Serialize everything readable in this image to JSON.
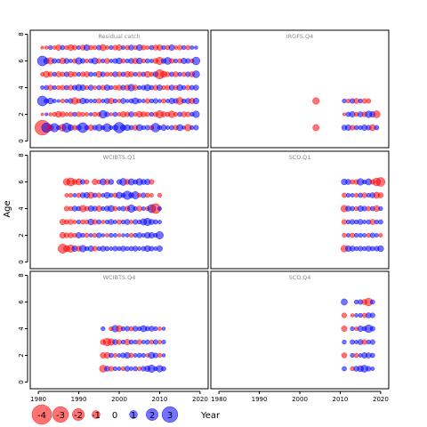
{
  "chart_data": {
    "type": "scatter",
    "kind": "bubble-residual-grid",
    "xlabel": "Year",
    "ylabel": "Age",
    "xlim": [
      1978,
      2022
    ],
    "ylim": [
      -0.5,
      8.3
    ],
    "x_ticks": [
      "1980",
      "1990",
      "2000",
      "2010",
      "2020"
    ],
    "y_ticks": [
      "0",
      "2",
      "4",
      "6",
      "8"
    ],
    "colors": {
      "negative": "#ff0000",
      "positive": "#0000ff",
      "fill_opacity": 0.55
    },
    "legend": {
      "values": [
        -4,
        -3,
        -2,
        -1,
        0,
        1,
        2,
        3
      ],
      "labels": [
        "-4",
        "-3",
        "-2",
        "-1",
        "0",
        "1",
        "2",
        "3"
      ],
      "title": "Year",
      "placement": "bottom"
    },
    "panels": [
      {
        "title": "Residual catch",
        "ages": [
          1,
          2,
          3,
          4,
          5,
          6,
          7
        ],
        "years": [
          1981,
          2019
        ],
        "rows": [
          [
            -3.6,
            2.1,
            -1.2,
            1.8,
            0.6,
            -1.4,
            2.0,
            1.1,
            -0.8,
            0.9,
            2.2,
            0.7,
            -1.0,
            0.8,
            1.3,
            0.6,
            1.7,
            0.5,
            0.9,
            2.4,
            1.0,
            1.1,
            0.7,
            -0.9,
            1.2,
            0.6,
            0.8,
            -0.7,
            1.9,
            0.6,
            1.0,
            0.5,
            0.7,
            -0.8,
            1.2,
            0.4,
            -1.3,
            0.6,
            0.8
          ],
          [
            -0.2,
            0.3,
            -0.4,
            -0.6,
            -1.1,
            -0.9,
            -0.5,
            -0.7,
            0.6,
            -0.8,
            -0.6,
            -0.5,
            0.4,
            -0.7,
            -0.6,
            1.6,
            0.8,
            -0.4,
            0.7,
            -0.5,
            -1.0,
            -0.8,
            0.9,
            -0.5,
            -1.1,
            -0.9,
            -0.7,
            0.6,
            -0.8,
            -1.5,
            -0.9,
            -0.7,
            -1.3,
            -0.6,
            0.7,
            -0.9,
            -0.8,
            0.6,
            1.3
          ],
          [
            2.2,
            0.8,
            1.1,
            0.5,
            0.3,
            -0.6,
            0.5,
            0.8,
            -1.3,
            -0.7,
            1.1,
            0.7,
            0.5,
            0.6,
            -0.8,
            0.5,
            0.9,
            -1.0,
            0.6,
            -0.5,
            0.9,
            0.4,
            0.7,
            1.2,
            0.6,
            0.5,
            -0.8,
            0.6,
            0.8,
            0.4,
            -0.7,
            0.5,
            1.0,
            0.8,
            -1.4,
            0.6,
            0.9,
            -1.0,
            1.1
          ],
          [
            0.5,
            0.7,
            -0.9,
            0.6,
            -0.6,
            -0.8,
            0.7,
            -0.9,
            0.8,
            1.2,
            1.0,
            -0.6,
            0.9,
            -0.5,
            0.7,
            -0.8,
            1.0,
            0.6,
            -0.7,
            -0.9,
            0.8,
            -1.0,
            1.3,
            -0.9,
            0.6,
            0.8,
            1.2,
            0.7,
            -0.9,
            1.0,
            -0.6,
            -0.8,
            0.9,
            -0.7,
            1.1,
            0.6,
            -0.8,
            0.7,
            0.9
          ],
          [
            -0.5,
            -1.2,
            -0.8,
            0.6,
            -0.9,
            -0.7,
            0.8,
            -1.0,
            -0.7,
            0.6,
            -0.8,
            -0.9,
            0.7,
            0.5,
            -1.1,
            0.8,
            -0.7,
            -0.6,
            0.9,
            -0.8,
            0.7,
            -1.0,
            -0.9,
            0.6,
            -0.8,
            0.7,
            -1.1,
            -0.6,
            0.9,
            -2.0,
            -1.2,
            -0.8,
            0.7,
            -0.9,
            0.6,
            -0.7,
            0.8,
            -0.9,
            1.4
          ],
          [
            2.2,
            1.0,
            -1.3,
            0.8,
            0.6,
            -1.1,
            0.9,
            0.5,
            -0.7,
            1.3,
            0.8,
            -0.6,
            0.7,
            1.2,
            -0.8,
            0.6,
            -0.9,
            0.5,
            0.8,
            1.1,
            -0.7,
            0.6,
            0.9,
            -1.0,
            1.1,
            -0.6,
            0.7,
            0.5,
            -0.9,
            -1.5,
            0.8,
            1.4,
            -0.8,
            0.6,
            -0.7,
            1.0,
            0.8,
            -0.6,
            1.6
          ],
          [
            -0.3,
            -0.4,
            0.6,
            -0.5,
            -1.0,
            0.7,
            -0.6,
            -1.1,
            -0.8,
            0.5,
            -0.9,
            1.1,
            -0.7,
            -0.6,
            0.8,
            -1.2,
            -0.5,
            0.6,
            -0.8,
            -1.0,
            0.5,
            -0.7,
            0.9,
            -0.6,
            1.1,
            -0.8,
            -0.5,
            0.7,
            -0.9,
            -1.0,
            0.6,
            -0.7,
            1.0,
            -0.5,
            -0.8,
            0.6,
            -0.7,
            0.5,
            0.4
          ]
        ]
      },
      {
        "title": "IRGFS.Q4",
        "ages": [
          1,
          2,
          3
        ],
        "years": [
          2004,
          2019
        ],
        "rows": [
          [
            -1.2,
            null,
            null,
            null,
            null,
            null,
            null,
            0.9,
            1.0,
            -0.8,
            0.7,
            0.6,
            1.0,
            0.8,
            -1.2,
            0.7
          ],
          [
            null,
            null,
            null,
            null,
            null,
            null,
            null,
            -0.3,
            0.7,
            1.0,
            -0.6,
            0.9,
            -0.8,
            1.3,
            1.0,
            -1.4
          ],
          [
            -1.3,
            null,
            null,
            null,
            null,
            null,
            null,
            0.6,
            -0.6,
            0.8,
            -0.9,
            0.6,
            -0.8,
            -0.7,
            null,
            null
          ]
        ]
      },
      {
        "title": "WCIBTS.Q1",
        "ages": [
          1,
          2,
          3,
          4,
          5,
          6
        ],
        "years": [
          1986,
          2010
        ],
        "rows": [
          [
            -2.0,
            -1.2,
            -1.5,
            1.0,
            -0.9,
            1.3,
            0.6,
            1.0,
            -0.8,
            0.6,
            0.9,
            0.7,
            0.5,
            0.8,
            0.6,
            0.9,
            0.6,
            0.7,
            0.9,
            0.5,
            0.7,
            1.1,
            0.8,
            0.5,
            1.0
          ],
          [
            -1.1,
            -0.8,
            -0.9,
            -0.6,
            1.0,
            0.6,
            -0.7,
            0.5,
            -0.6,
            0.8,
            0.4,
            -0.5,
            0.6,
            0.5,
            -0.4,
            0.4,
            0.5,
            -0.6,
            0.6,
            0.9,
            0.5,
            1.1,
            1.0,
            0.6,
            1.5
          ],
          [
            -1.0,
            -0.7,
            -0.9,
            -0.5,
            0.6,
            -0.7,
            -0.6,
            1.1,
            -0.8,
            0.7,
            -0.5,
            0.6,
            0.9,
            0.5,
            -0.7,
            0.6,
            0.9,
            -0.5,
            0.8,
            0.6,
            1.2,
            1.5,
            0.9,
            0.7,
            0.5
          ],
          [
            null,
            -0.8,
            -0.6,
            0.9,
            0.7,
            -1.3,
            -0.7,
            1.0,
            0.8,
            -1.0,
            0.6,
            0.9,
            1.2,
            -0.7,
            0.5,
            0.8,
            -0.8,
            1.5,
            0.6,
            -0.9,
            0.5,
            -0.6,
            1.7,
            -2.2,
            0.5
          ],
          [
            null,
            -0.5,
            -0.6,
            0.5,
            -0.7,
            0.9,
            1.0,
            -1.2,
            0.7,
            -0.8,
            0.5,
            1.1,
            0.6,
            -0.7,
            1.2,
            0.7,
            1.8,
            0.9,
            1.5,
            -0.6,
            0.8,
            -0.7,
            -0.5,
            null,
            -0.6
          ],
          [
            null,
            -1.3,
            -1.7,
            -0.9,
            -1.2,
            0.8,
            -0.7,
            null,
            -1.0,
            -0.6,
            1.2,
            -0.9,
            0.9,
            null,
            0.8,
            1.4,
            -0.9,
            1.2,
            0.7,
            1.3,
            0.9,
            1.0,
            -0.8,
            null,
            null
          ]
        ]
      },
      {
        "title": "SCO.Q1",
        "ages": [
          1,
          2,
          3,
          4,
          5,
          6
        ],
        "years": [
          2011,
          2020
        ],
        "rows": [
          [
            -1.3,
            1.0,
            0.9,
            0.6,
            0.8,
            0.6,
            0.9,
            0.7,
            0.8,
            1.1
          ],
          [
            -0.6,
            0.5,
            -0.7,
            0.6,
            0.6,
            0.5,
            -0.6,
            0.8,
            0.5,
            -0.5
          ],
          [
            -0.8,
            0.6,
            0.8,
            0.6,
            0.9,
            0.5,
            0.7,
            -0.9,
            0.6,
            0.7
          ],
          [
            -1.3,
            0.9,
            0.7,
            -0.6,
            1.0,
            0.8,
            -0.7,
            0.7,
            -1.1,
            0.6
          ],
          [
            -0.7,
            0.6,
            0.5,
            -0.6,
            0.7,
            -0.8,
            0.6,
            0.9,
            -1.2,
            -0.9
          ],
          [
            1.1,
            0.9,
            -0.7,
            -0.8,
            1.3,
            0.6,
            1.2,
            -0.8,
            -1.6,
            -1.9
          ]
        ]
      },
      {
        "title": "WCIBTS.Q4",
        "ages": [
          1,
          2,
          3,
          4
        ],
        "years": [
          1996,
          2011
        ],
        "rows": [
          [
            -1.4,
            0.9,
            -0.8,
            0.6,
            0.5,
            -0.6,
            0.9,
            0.5,
            0.7,
            -0.6,
            0.8,
            1.0,
            1.5,
            0.6,
            1.3,
            0.7
          ],
          [
            -1.0,
            -1.1,
            0.7,
            -0.6,
            0.5,
            0.8,
            1.1,
            -0.7,
            0.5,
            0.7,
            0.6,
            -0.5,
            1.2,
            0.8,
            -0.6,
            0.4
          ],
          [
            -0.9,
            -1.6,
            -1.3,
            0.9,
            -0.8,
            0.6,
            -1.0,
            0.7,
            0.6,
            -0.8,
            0.5,
            0.7,
            -0.6,
            0.8,
            -0.5,
            0.6
          ],
          [
            0.6,
            null,
            -0.6,
            1.3,
            -1.2,
            0.6,
            0.8,
            -0.7,
            0.9,
            0.6,
            1.2,
            0.7,
            0.9,
            0.6,
            -0.5,
            0.4
          ]
        ]
      },
      {
        "title": "SCO.Q4",
        "ages": [
          1,
          2,
          3,
          4,
          5,
          6
        ],
        "years": [
          2011,
          2018
        ],
        "rows": [
          [
            0.7,
            null,
            -0.6,
            0.9,
            1.1,
            1.4,
            0.8,
            0.5
          ],
          [
            -0.9,
            null,
            0.6,
            -0.7,
            0.5,
            1.0,
            0.9,
            0.7
          ],
          [
            0.6,
            null,
            0.7,
            0.5,
            0.9,
            -0.8,
            0.6,
            0.8
          ],
          [
            -1.0,
            null,
            0.6,
            -0.5,
            1.0,
            0.7,
            1.6,
            0.8
          ],
          [
            -0.8,
            null,
            -0.4,
            0.5,
            0.6,
            -0.7,
            0.9,
            0.8
          ],
          [
            1.2,
            null,
            null,
            0.6,
            0.8,
            -0.9,
            -1.6,
            0.7
          ]
        ]
      }
    ]
  }
}
